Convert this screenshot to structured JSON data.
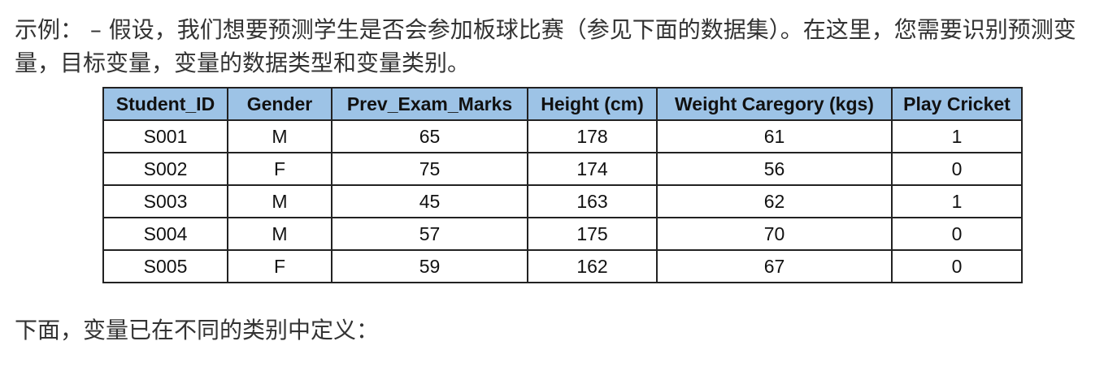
{
  "intro": "示例： – 假设，我们想要预测学生是否会参加板球比赛（参见下面的数据集）。在这里，您需要识别预测变量，目标变量，变量的数据类型和变量类别。",
  "table": {
    "headers": [
      "Student_ID",
      "Gender",
      "Prev_Exam_Marks",
      "Height (cm)",
      "Weight Caregory (kgs)",
      "Play Cricket"
    ],
    "rows": [
      [
        "S001",
        "M",
        65,
        178,
        61,
        1
      ],
      [
        "S002",
        "F",
        75,
        174,
        56,
        0
      ],
      [
        "S003",
        "M",
        45,
        163,
        62,
        1
      ],
      [
        "S004",
        "M",
        57,
        175,
        70,
        0
      ],
      [
        "S005",
        "F",
        59,
        162,
        67,
        0
      ]
    ]
  },
  "outro": "下面，变量已在不同的类别中定义："
}
